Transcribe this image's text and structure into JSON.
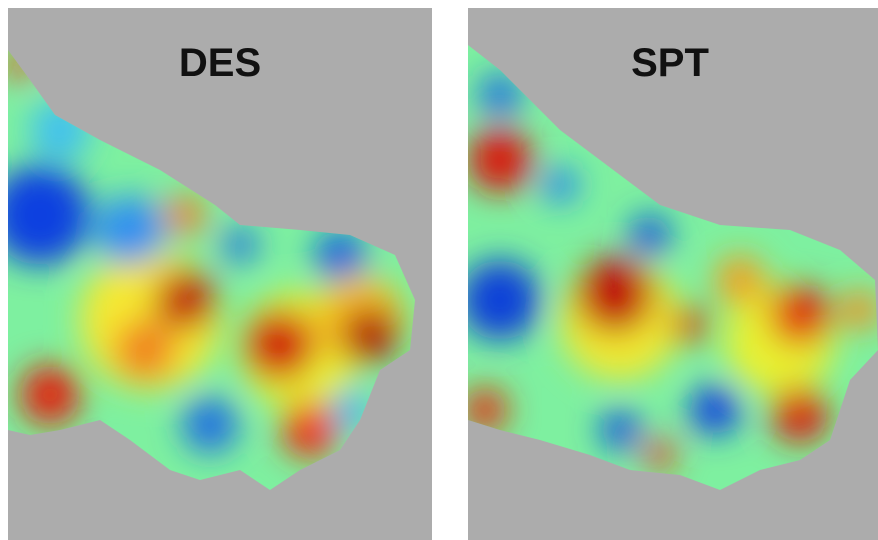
{
  "panels": [
    {
      "title": "DES"
    },
    {
      "title": "SPT"
    }
  ]
}
